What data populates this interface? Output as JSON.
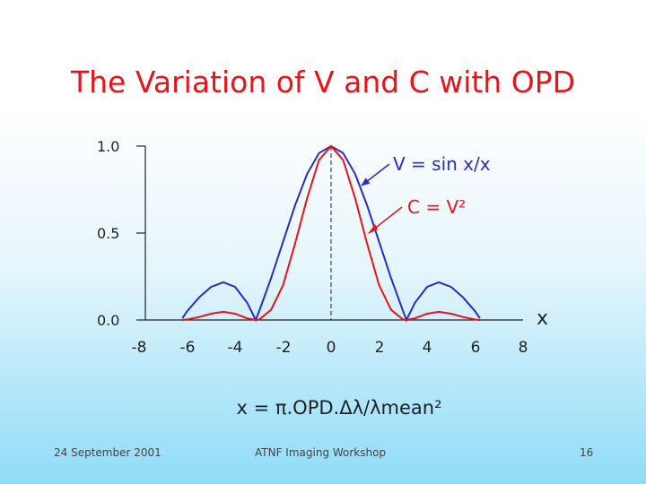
{
  "slide": {
    "title": "The Variation of V and C with OPD",
    "footer_date": "24 September 2001",
    "footer_center": "ATNF Imaging Workshop",
    "page_number": "16"
  },
  "chart_data": {
    "type": "line",
    "xlabel": "x = π.OPD.Δλ/λmean²",
    "x_axis_end_label": "x",
    "xlim": [
      -8.5,
      8.3
    ],
    "ylim": [
      0,
      1
    ],
    "x_ticks": [
      "-8",
      "-6",
      "-4",
      "-2",
      "0",
      "2",
      "4",
      "6",
      "8"
    ],
    "y_ticks": [
      "0.0",
      "0.5",
      "1.0"
    ],
    "grid": false,
    "series": [
      {
        "name": "V = sin x/x",
        "color": "#2b2bc8",
        "x": [
          -6.2,
          -6.0,
          -5.5,
          -5.0,
          -4.49,
          -4.0,
          -3.5,
          -3.14,
          -3.0,
          -2.5,
          -2.0,
          -1.5,
          -1.0,
          -0.5,
          0,
          0.5,
          1.0,
          1.5,
          2.0,
          2.5,
          3.0,
          3.14,
          3.5,
          4.0,
          4.49,
          5.0,
          5.5,
          6.0,
          6.2
        ],
        "y": [
          0.01,
          0.05,
          0.13,
          0.19,
          0.217,
          0.19,
          0.1,
          0.0,
          0.05,
          0.24,
          0.45,
          0.66,
          0.84,
          0.96,
          1.0,
          0.96,
          0.84,
          0.66,
          0.45,
          0.24,
          0.05,
          0.0,
          0.1,
          0.19,
          0.217,
          0.19,
          0.13,
          0.05,
          0.01
        ]
      },
      {
        "name": "C = V²",
        "color": "#e8131b",
        "x": [
          -6.2,
          -6.0,
          -5.5,
          -5.0,
          -4.49,
          -4.0,
          -3.5,
          -3.14,
          -3.0,
          -2.5,
          -2.0,
          -1.5,
          -1.0,
          -0.5,
          0,
          0.5,
          1.0,
          1.5,
          2.0,
          2.5,
          3.0,
          3.14,
          3.5,
          4.0,
          4.49,
          5.0,
          5.5,
          6.0,
          6.2
        ],
        "y": [
          0.0,
          0.0025,
          0.017,
          0.036,
          0.047,
          0.036,
          0.01,
          0.0,
          0.0025,
          0.058,
          0.2,
          0.44,
          0.7,
          0.92,
          1.0,
          0.92,
          0.7,
          0.44,
          0.2,
          0.058,
          0.0025,
          0.0,
          0.01,
          0.036,
          0.047,
          0.036,
          0.017,
          0.0025,
          0.0
        ]
      }
    ],
    "annotations": [
      {
        "label": "V = sin x/x",
        "target_series": "V = sin x/x"
      },
      {
        "label": "C = V²",
        "target_series": "C = V²"
      }
    ]
  }
}
